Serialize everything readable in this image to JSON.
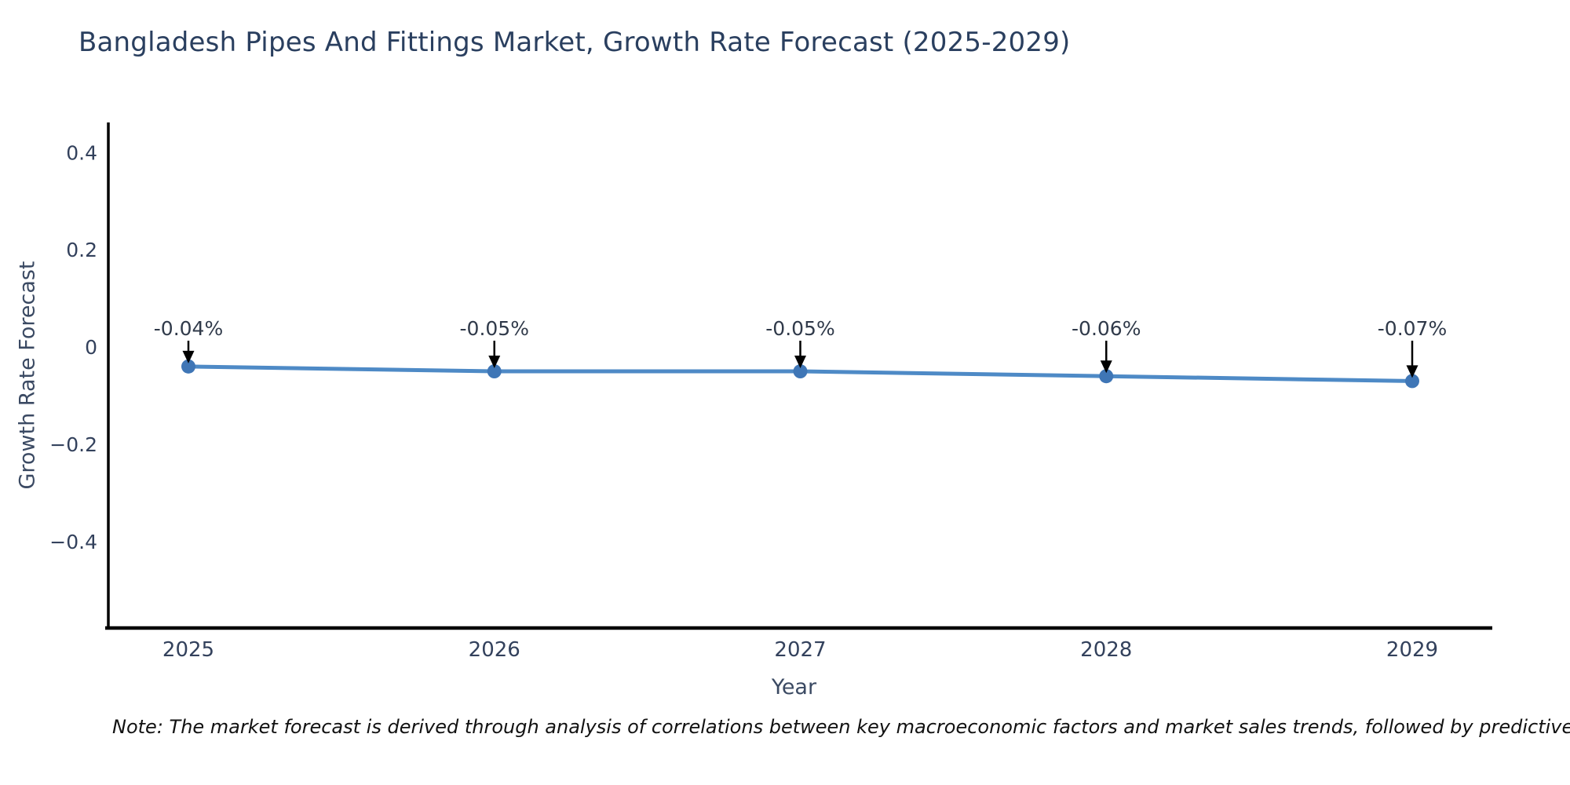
{
  "chart_data": {
    "type": "line",
    "title": "Bangladesh Pipes And Fittings Market, Growth Rate Forecast (2025-2029)",
    "xlabel": "Year",
    "ylabel": "Growth Rate Forecast",
    "x": [
      2025,
      2026,
      2027,
      2028,
      2029
    ],
    "series": [
      {
        "name": "Growth Rate Forecast",
        "values": [
          -0.04,
          -0.05,
          -0.05,
          -0.06,
          -0.07
        ]
      }
    ],
    "point_labels": [
      "-0.04%",
      "-0.05%",
      "-0.05%",
      "-0.06%",
      "-0.07%"
    ],
    "yticks": [
      0.4,
      0.2,
      0,
      -0.2,
      -0.4
    ],
    "ytick_labels": [
      "0.4",
      "0.2",
      "0",
      "−0.2",
      "−0.4"
    ],
    "ylim": [
      -0.578,
      0.462
    ],
    "grid": false,
    "legend_position": "none",
    "colors": {
      "line": "#4e8ac6",
      "marker": "#3f76b6",
      "axis": "#000000",
      "arrow": "#000000",
      "title_text": "#2a3f5f",
      "tick_text": "#33415c",
      "axis_title_text": "#3b4a63",
      "annotation_text": "#303a4a"
    },
    "note": "Note: The market forecast is derived through analysis of correlations between key macroeconomic factors and market sales trends, followed by predictive modeling to project future sales."
  }
}
